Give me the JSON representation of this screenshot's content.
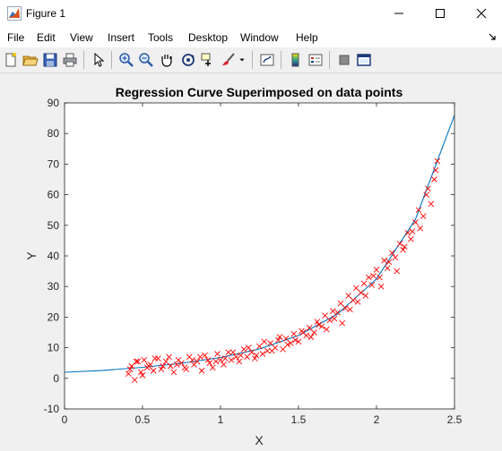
{
  "window": {
    "title": "Figure 1"
  },
  "menu": [
    "File",
    "Edit",
    "View",
    "Insert",
    "Tools",
    "Desktop",
    "Window",
    "Help"
  ],
  "toolbar": [
    {
      "name": "new-figure-icon"
    },
    {
      "name": "open-file-icon"
    },
    {
      "name": "save-icon"
    },
    {
      "name": "print-icon"
    },
    {
      "name": "pointer-icon"
    },
    {
      "name": "zoom-in-icon"
    },
    {
      "name": "zoom-out-icon"
    },
    {
      "name": "pan-hand-icon"
    },
    {
      "name": "rotate-3d-icon"
    },
    {
      "name": "data-cursor-icon"
    },
    {
      "name": "brush-icon"
    },
    {
      "name": "link-plot-icon"
    },
    {
      "name": "colorbar-icon"
    },
    {
      "name": "legend-icon"
    },
    {
      "name": "hide-plot-tools-icon"
    },
    {
      "name": "show-plot-tools-icon"
    }
  ],
  "chart_data": {
    "type": "scatter",
    "title": "Regression Curve Superimposed on data points",
    "xlabel": "X",
    "ylabel": "Y",
    "xlim": [
      0,
      2.5
    ],
    "ylim": [
      -10,
      90
    ],
    "xticks": [
      0,
      0.5,
      1,
      1.5,
      2,
      2.5
    ],
    "yticks": [
      -10,
      0,
      10,
      20,
      30,
      40,
      50,
      60,
      70,
      80,
      90
    ],
    "marker": "x",
    "colors": {
      "points": "#ff0000",
      "curve": "#0072bd"
    },
    "series": [
      {
        "type": "line",
        "x": [
          0,
          0.25,
          0.5,
          0.75,
          1.0,
          1.25,
          1.5,
          1.75,
          2.0,
          2.25,
          2.5
        ],
        "y": [
          2.0,
          2.6,
          3.6,
          4.9,
          6.8,
          9.6,
          14.0,
          21.0,
          32.5,
          52.0,
          86.0
        ]
      },
      {
        "type": "scatter",
        "x": [
          0.41,
          0.43,
          0.45,
          0.47,
          0.49,
          0.51,
          0.53,
          0.55,
          0.57,
          0.6,
          0.62,
          0.65,
          0.68,
          0.7,
          0.73,
          0.75,
          0.78,
          0.8,
          0.83,
          0.85,
          0.88,
          0.9,
          0.93,
          0.95,
          0.98,
          1.0,
          1.02,
          1.05,
          1.07,
          1.1,
          1.12,
          1.15,
          1.17,
          1.2,
          1.22,
          1.25,
          1.27,
          1.3,
          1.32,
          1.35,
          1.37,
          1.4,
          1.42,
          1.45,
          1.47,
          1.5,
          1.52,
          1.55,
          1.57,
          1.6,
          1.62,
          1.65,
          1.67,
          1.7,
          1.72,
          1.75,
          1.77,
          1.8,
          1.82,
          1.85,
          1.87,
          1.9,
          1.92,
          1.95,
          1.97,
          2.0,
          2.02,
          2.05,
          2.07,
          2.1,
          2.12,
          2.15,
          2.17,
          2.2,
          2.22,
          2.25,
          2.27,
          2.3,
          2.32,
          2.35,
          2.37,
          2.39,
          0.42,
          0.46,
          0.5,
          0.54,
          0.58,
          0.63,
          0.67,
          0.72,
          0.77,
          0.82,
          0.87,
          0.92,
          0.97,
          1.03,
          1.08,
          1.13,
          1.18,
          1.23,
          1.28,
          1.33,
          1.38,
          1.43,
          1.48,
          1.53,
          1.58,
          1.63,
          1.68,
          1.73,
          1.78,
          1.83,
          1.88,
          1.93,
          1.98,
          2.03,
          2.08,
          2.13,
          2.18,
          2.23,
          2.28,
          2.33,
          2.38
        ],
        "y": [
          1.5,
          4.0,
          -0.5,
          5.5,
          2.0,
          6.0,
          3.5,
          4.5,
          2.5,
          6.5,
          3.0,
          5.5,
          4.0,
          2.0,
          6.0,
          5.0,
          3.0,
          7.0,
          4.5,
          5.5,
          2.5,
          7.5,
          5.0,
          3.5,
          8.0,
          6.0,
          4.5,
          8.5,
          6.0,
          7.0,
          5.5,
          9.5,
          7.0,
          8.5,
          6.5,
          10.5,
          8.0,
          9.0,
          11.5,
          10.0,
          12.5,
          9.5,
          13.0,
          11.5,
          14.5,
          12.0,
          15.5,
          14.0,
          16.5,
          15.0,
          18.5,
          17.0,
          20.5,
          19.0,
          22.0,
          21.5,
          24.5,
          23.0,
          27.0,
          25.5,
          29.5,
          28.0,
          31.0,
          33.0,
          30.5,
          35.5,
          33.0,
          38.5,
          36.0,
          41.0,
          39.5,
          44.0,
          42.0,
          47.5,
          45.5,
          51.0,
          55.0,
          53.0,
          60.0,
          57.0,
          65.0,
          71.0,
          3.0,
          5.5,
          1.0,
          4.0,
          6.5,
          4.0,
          7.0,
          4.5,
          3.5,
          6.0,
          7.0,
          6.0,
          5.5,
          6.5,
          8.5,
          7.5,
          10.0,
          7.5,
          12.0,
          9.0,
          13.5,
          11.0,
          12.5,
          15.0,
          13.5,
          17.5,
          16.0,
          19.5,
          18.0,
          22.5,
          25.0,
          27.0,
          33.5,
          30.0,
          38.0,
          35.0,
          43.0,
          48.0,
          49.0,
          62.0,
          68.0
        ]
      }
    ]
  }
}
